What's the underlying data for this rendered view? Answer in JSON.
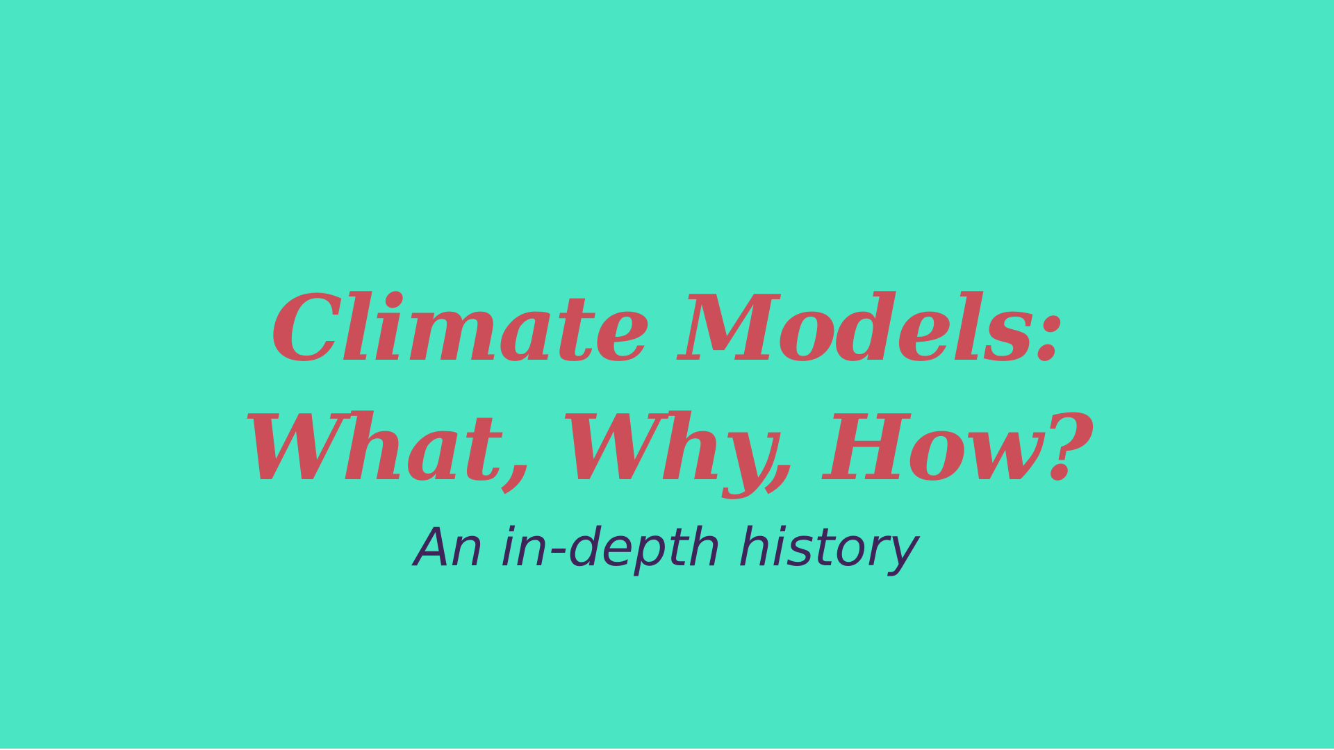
{
  "slide": {
    "background_color": "#4ae6c3",
    "title_color": "#cc4e58",
    "subtitle_color": "#3e2459",
    "title_line_1": "Climate Models:",
    "title_line_2": "What, Why, How?",
    "subtitle": "An in-depth history"
  }
}
